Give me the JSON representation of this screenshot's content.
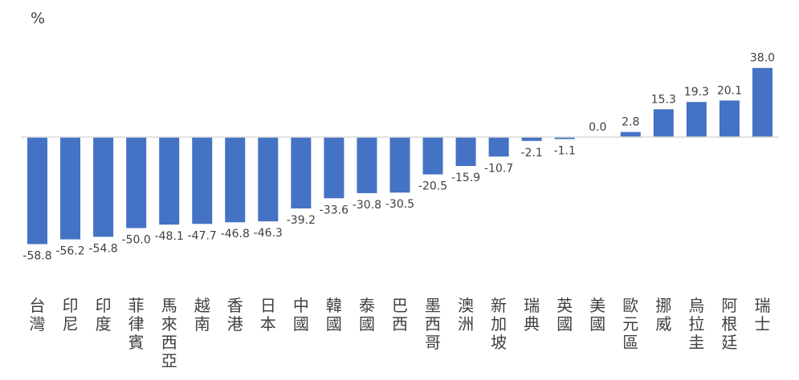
{
  "chart_data": {
    "type": "bar",
    "ylabel": "%",
    "categories": [
      "台灣",
      "印尼",
      "印度",
      "菲律賓",
      "馬來西亞",
      "越南",
      "香港",
      "日本",
      "中國",
      "韓國",
      "泰國",
      "巴西",
      "墨西哥",
      "澳洲",
      "新加坡",
      "瑞典",
      "英國",
      "美國",
      "歐元區",
      "挪威",
      "烏拉圭",
      "阿根廷",
      "瑞士"
    ],
    "values": [
      -58.8,
      -56.2,
      -54.8,
      -50.0,
      -48.1,
      -47.7,
      -46.8,
      -46.3,
      -39.2,
      -33.6,
      -30.8,
      -30.5,
      -20.5,
      -15.9,
      -10.7,
      -2.1,
      -1.1,
      0.0,
      2.8,
      15.3,
      19.3,
      20.1,
      38.0
    ],
    "value_labels": [
      "-58.8",
      "-56.2",
      "-54.8",
      "-50.0",
      "-48.1",
      "-47.7",
      "-46.8",
      "-46.3",
      "-39.2",
      "-33.6",
      "-30.8",
      "-30.5",
      "-20.5",
      "-15.9",
      "-10.7",
      "-2.1",
      "-1.1",
      "0.0",
      "2.8",
      "15.3",
      "19.3",
      "20.1",
      "38.0"
    ],
    "bar_color": "#4472C4",
    "axis_color": "#D9D9D9",
    "grid": false,
    "legend": "none"
  }
}
